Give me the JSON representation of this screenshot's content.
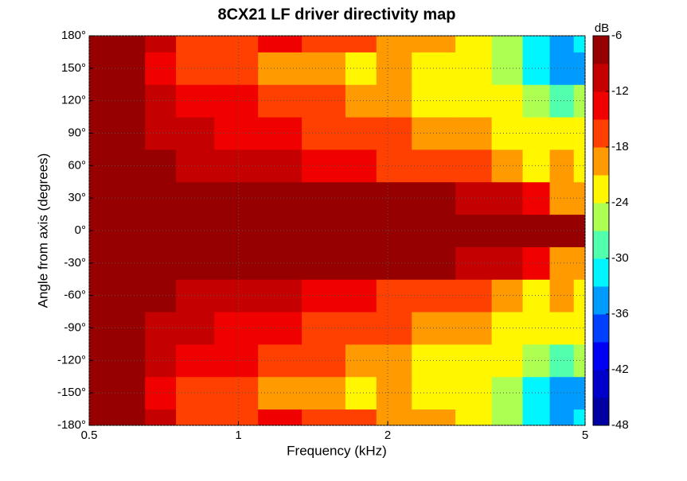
{
  "chart_data": {
    "type": "heatmap",
    "title": "8CX21 LF driver directivity map",
    "x_label": "Frequency (kHz)",
    "y_label": "Angle from axis (degrees)",
    "colorbar_label": "dB",
    "x": [
      0.5,
      0.6,
      0.7,
      0.8,
      1,
      1.2,
      1.5,
      1.8,
      2,
      2.5,
      3,
      3.5,
      4,
      4.5,
      5
    ],
    "y": [
      -180,
      -150,
      -120,
      -90,
      -60,
      -30,
      0,
      30,
      60,
      90,
      120,
      150,
      180
    ],
    "z": [
      [
        -6,
        -6,
        -12,
        -16,
        -17,
        -14,
        -18,
        -18,
        -19,
        -21,
        -24,
        -27,
        -31,
        -34,
        -32
      ],
      [
        -6,
        -9,
        -13,
        -16,
        -17,
        -19,
        -21,
        -23,
        -20,
        -22,
        -24,
        -27,
        -33,
        -36,
        -35
      ],
      [
        -8,
        -8,
        -11,
        -13,
        -14,
        -16,
        -18,
        -20,
        -19,
        -22,
        -22,
        -24,
        -27,
        -28,
        -27
      ],
      [
        -6,
        -6,
        -10,
        -12,
        -13,
        -14,
        -16,
        -17,
        -18,
        -21,
        -21,
        -22,
        -24,
        -24,
        -24
      ],
      [
        -6,
        -6,
        -9,
        -10,
        -10,
        -12,
        -13,
        -14,
        -16,
        -17,
        -18,
        -20,
        -22,
        -20,
        -22
      ],
      [
        -6,
        -6,
        -6,
        -6,
        -6,
        -6,
        -6,
        -6,
        -7,
        -8,
        -10,
        -12,
        -15,
        -19,
        -20
      ],
      [
        -6,
        -6,
        -6,
        -6,
        -6,
        -6,
        -6,
        -6,
        -6,
        -6,
        -6,
        -6,
        -6,
        -6,
        -6
      ],
      [
        -6,
        -6,
        -6,
        -6,
        -6,
        -6,
        -6,
        -6,
        -7,
        -8,
        -10,
        -12,
        -15,
        -19,
        -20
      ],
      [
        -6,
        -6,
        -9,
        -10,
        -10,
        -12,
        -13,
        -14,
        -16,
        -17,
        -18,
        -20,
        -22,
        -20,
        -22
      ],
      [
        -6,
        -6,
        -10,
        -12,
        -13,
        -14,
        -16,
        -17,
        -18,
        -21,
        -21,
        -22,
        -24,
        -24,
        -24
      ],
      [
        -8,
        -8,
        -11,
        -13,
        -14,
        -16,
        -18,
        -20,
        -19,
        -22,
        -22,
        -24,
        -27,
        -28,
        -27
      ],
      [
        -6,
        -9,
        -13,
        -16,
        -17,
        -19,
        -21,
        -23,
        -20,
        -22,
        -24,
        -27,
        -33,
        -36,
        -35
      ],
      [
        -6,
        -6,
        -12,
        -16,
        -17,
        -14,
        -18,
        -18,
        -19,
        -21,
        -24,
        -27,
        -31,
        -34,
        -32
      ]
    ],
    "log_x": true,
    "xlim": [
      0.5,
      5
    ],
    "xticks": [
      0.5,
      1,
      2,
      5
    ],
    "ylim": [
      -180,
      180
    ],
    "yticks": [
      {
        "value": -180,
        "label": "-180°"
      },
      {
        "value": -150,
        "label": "-150°"
      },
      {
        "value": -120,
        "label": "-120°"
      },
      {
        "value": -90,
        "label": "-90°"
      },
      {
        "value": -60,
        "label": "-60°"
      },
      {
        "value": -30,
        "label": "-30°"
      },
      {
        "value": 0,
        "label": "0°"
      },
      {
        "value": 30,
        "label": "30°"
      },
      {
        "value": 60,
        "label": "60°"
      },
      {
        "value": 90,
        "label": "90°"
      },
      {
        "value": 120,
        "label": "120°"
      },
      {
        "value": 150,
        "label": "150°"
      },
      {
        "value": 180,
        "label": "180°"
      }
    ],
    "clim": [
      -48,
      -6
    ],
    "cticks": [
      -6,
      -12,
      -18,
      -24,
      -30,
      -36,
      -42,
      -48
    ],
    "level_step": 3,
    "colormap": [
      "#00008f",
      "#0000ff",
      "#00ffff",
      "#ffff00",
      "#ff0000",
      "#800000"
    ],
    "grid": true
  }
}
